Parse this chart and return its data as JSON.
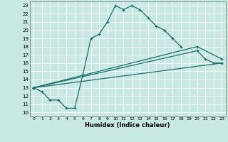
{
  "xlabel": "Humidex (Indice chaleur)",
  "ylabel": "",
  "background_color": "#c8e8e4",
  "grid_color": "#ffffff",
  "line_color": "#1a6e6a",
  "xlim": [
    -0.5,
    23.5
  ],
  "ylim": [
    9.5,
    23.5
  ],
  "xticks": [
    0,
    1,
    2,
    3,
    4,
    5,
    6,
    7,
    8,
    9,
    10,
    11,
    12,
    13,
    14,
    15,
    16,
    17,
    18,
    19,
    20,
    21,
    22,
    23
  ],
  "yticks": [
    10,
    11,
    12,
    13,
    14,
    15,
    16,
    17,
    18,
    19,
    20,
    21,
    22,
    23
  ],
  "lines": [
    {
      "x": [
        0,
        1,
        2,
        3,
        4,
        5,
        6,
        7,
        8,
        9,
        10,
        11,
        12,
        13,
        14,
        15,
        16,
        17,
        18
      ],
      "y": [
        13,
        12.5,
        11.5,
        11.5,
        10.5,
        10.5,
        14.5,
        19,
        19.5,
        21,
        23,
        22.5,
        23,
        22.5,
        21.5,
        20.5,
        20,
        19,
        18
      ]
    },
    {
      "x": [
        0,
        23
      ],
      "y": [
        13,
        16
      ]
    },
    {
      "x": [
        0,
        20,
        23
      ],
      "y": [
        13,
        18,
        16.5
      ]
    },
    {
      "x": [
        0,
        20,
        21,
        22,
        23
      ],
      "y": [
        13,
        17.5,
        16.5,
        16,
        16
      ]
    }
  ]
}
